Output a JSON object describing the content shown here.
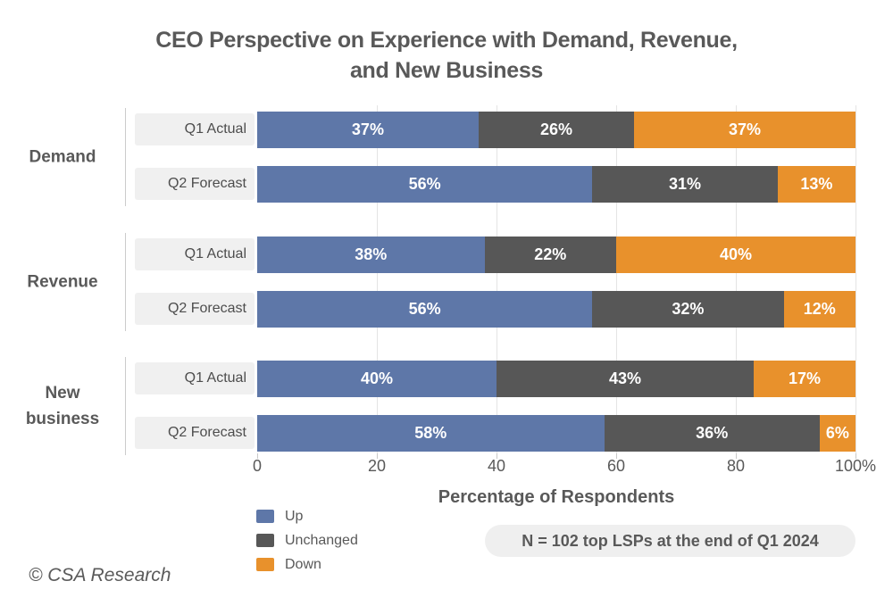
{
  "title": {
    "lines": [
      "CEO Perspective on Experience with Demand, Revenue,",
      "and New Business"
    ]
  },
  "chart_data": {
    "type": "bar",
    "orientation": "horizontal",
    "stacked": true,
    "title": "CEO Perspective on Experience with Demand, Revenue, and New Business",
    "xlabel": "Percentage of Respondents",
    "xlim": [
      0,
      100
    ],
    "grid": true,
    "tick_values": [
      0,
      20,
      40,
      60,
      80,
      100
    ],
    "x_tick_labels": [
      "0",
      "20",
      "40",
      "60",
      "80",
      "100%"
    ],
    "value_suffix": "%",
    "legend_position": "bottom-left",
    "legend": [
      {
        "label": "Up",
        "color": "#5E77A8"
      },
      {
        "label": "Unchanged",
        "color": "#575757"
      },
      {
        "label": "Down",
        "color": "#E8912C"
      }
    ],
    "groups": [
      {
        "label": "Demand",
        "rows": [
          {
            "label": "Q1 Actual",
            "values": [
              37,
              26,
              37
            ]
          },
          {
            "label": "Q2 Forecast",
            "values": [
              56,
              31,
              13
            ]
          }
        ]
      },
      {
        "label": "Revenue",
        "rows": [
          {
            "label": "Q1 Actual",
            "values": [
              38,
              22,
              40
            ]
          },
          {
            "label": "Q2 Forecast",
            "values": [
              56,
              32,
              12
            ]
          }
        ]
      },
      {
        "label": "New business",
        "rows": [
          {
            "label": "Q1 Actual",
            "values": [
              40,
              43,
              17
            ]
          },
          {
            "label": "Q2 Forecast",
            "values": [
              58,
              36,
              6
            ]
          }
        ]
      }
    ]
  },
  "note": "N = 102 top LSPs at the end of Q1 2024",
  "footer": "© CSA Research",
  "colors": {
    "up": "#5E77A8",
    "unchanged": "#575757",
    "down": "#E8912C",
    "text": "#595959",
    "row_label_bg": "#f0f0f0",
    "note_bg": "#efefef",
    "gridline": "#e4e4e4"
  }
}
